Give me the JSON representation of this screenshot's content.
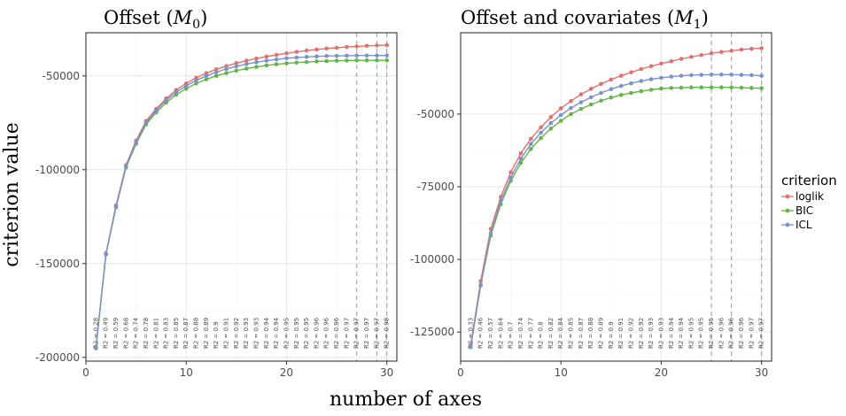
{
  "figure": {
    "xlabel": "number of axes",
    "ylabel": "criterion value"
  },
  "legend": {
    "title": "criterion",
    "items": [
      {
        "label": "loglik",
        "color": "#E0726D"
      },
      {
        "label": "BIC",
        "color": "#63B548"
      },
      {
        "label": "ICL",
        "color": "#7C92CC"
      }
    ]
  },
  "chart_data": [
    {
      "type": "line",
      "title": "Offset (M_0)",
      "title_parts": {
        "prefix": "Offset (",
        "symbol": "M",
        "subscript": "0",
        "suffix": ")"
      },
      "xlabel": "number of axes",
      "ylabel": "criterion value",
      "xlim": [
        0,
        31
      ],
      "ylim": [
        -202000,
        -27000
      ],
      "xticks": [
        0,
        10,
        20,
        30
      ],
      "yticks": [
        -200000,
        -150000,
        -100000,
        -50000
      ],
      "ytick_labels": [
        "-200000",
        "-150000",
        "-100000",
        "-50000"
      ],
      "grid": true,
      "x": [
        1,
        2,
        3,
        4,
        5,
        6,
        7,
        8,
        9,
        10,
        11,
        12,
        13,
        14,
        15,
        16,
        17,
        18,
        19,
        20,
        21,
        22,
        23,
        24,
        25,
        26,
        27,
        28,
        29,
        30
      ],
      "series": [
        {
          "name": "loglik",
          "values": [
            -194500,
            -144500,
            -119000,
            -97500,
            -84500,
            -74000,
            -67500,
            -62000,
            -57500,
            -54000,
            -51000,
            -48500,
            -46500,
            -44800,
            -43200,
            -41900,
            -40700,
            -39700,
            -38800,
            -38000,
            -37200,
            -36500,
            -35900,
            -35400,
            -35000,
            -34600,
            -34300,
            -34000,
            -33800,
            -33600
          ]
        },
        {
          "name": "BIC",
          "values": [
            -194800,
            -145200,
            -120000,
            -98800,
            -86200,
            -75800,
            -69500,
            -64200,
            -60000,
            -56800,
            -54000,
            -51800,
            -50000,
            -48500,
            -47200,
            -46100,
            -45200,
            -44400,
            -43800,
            -43300,
            -42900,
            -42600,
            -42300,
            -42100,
            -41900,
            -41800,
            -41700,
            -41700,
            -41700,
            -41700
          ]
        },
        {
          "name": "ICL",
          "values": [
            -195200,
            -145000,
            -119500,
            -98200,
            -85400,
            -74900,
            -68400,
            -63000,
            -58700,
            -55300,
            -52400,
            -50000,
            -48000,
            -46300,
            -44900,
            -43700,
            -42700,
            -41900,
            -41200,
            -40600,
            -40200,
            -39900,
            -39600,
            -39400,
            -39300,
            -39200,
            -39100,
            -39100,
            -39100,
            -39100
          ]
        }
      ],
      "r2_labels": [
        "R2 = 0.28",
        "R2 = 0.49",
        "R2 = 0.59",
        "R2 = 0.68",
        "R2 = 0.74",
        "R2 = 0.78",
        "R2 = 0.81",
        "R2 = 0.83",
        "R2 = 0.85",
        "R2 = 0.87",
        "R2 = 0.88",
        "R2 = 0.89",
        "R2 = 0.9",
        "R2 = 0.91",
        "R2 = 0.92",
        "R2 = 0.93",
        "R2 = 0.93",
        "R2 = 0.94",
        "R2 = 0.94",
        "R2 = 0.95",
        "R2 = 0.95",
        "R2 = 0.95",
        "R2 = 0.96",
        "R2 = 0.96",
        "R2 = 0.96",
        "R2 = 0.97",
        "R2 = 0.97",
        "R2 = 0.97",
        "R2 = 0.97",
        "R2 = 0.98"
      ],
      "vlines": [
        27,
        29,
        30
      ]
    },
    {
      "type": "line",
      "title": "Offset and covariates (M_1)",
      "title_parts": {
        "prefix": "Offset and covariates (",
        "symbol": "M",
        "subscript": "1",
        "suffix": ")"
      },
      "xlabel": "number of axes",
      "ylabel": "criterion value",
      "xlim": [
        0,
        31
      ],
      "ylim": [
        -135000,
        -22000
      ],
      "xticks": [
        0,
        10,
        20,
        30
      ],
      "yticks": [
        -125000,
        -100000,
        -75000,
        -50000
      ],
      "ytick_labels": [
        "-125000",
        "-100000",
        "-75000",
        "-50000"
      ],
      "grid": true,
      "x": [
        1,
        2,
        3,
        4,
        5,
        6,
        7,
        8,
        9,
        10,
        11,
        12,
        13,
        14,
        15,
        16,
        17,
        18,
        19,
        20,
        21,
        22,
        23,
        24,
        25,
        26,
        27,
        28,
        29,
        30
      ],
      "series": [
        {
          "name": "loglik",
          "values": [
            -129500,
            -107500,
            -89500,
            -78500,
            -70000,
            -63500,
            -58500,
            -54500,
            -51000,
            -48000,
            -45500,
            -43200,
            -41300,
            -39600,
            -38100,
            -36800,
            -35600,
            -34500,
            -33500,
            -32600,
            -31800,
            -31000,
            -30300,
            -29700,
            -29100,
            -28600,
            -28200,
            -27800,
            -27500,
            -27300
          ]
        },
        {
          "name": "BIC",
          "values": [
            -130200,
            -109000,
            -91800,
            -81000,
            -73000,
            -66800,
            -62000,
            -58200,
            -55000,
            -52300,
            -50000,
            -48200,
            -46700,
            -45400,
            -44300,
            -43400,
            -42700,
            -42100,
            -41600,
            -41200,
            -41000,
            -40900,
            -40800,
            -40800,
            -40800,
            -40800,
            -40800,
            -40900,
            -41000,
            -41100
          ]
        },
        {
          "name": "ICL",
          "values": [
            -130000,
            -108800,
            -91000,
            -79800,
            -71800,
            -65300,
            -60300,
            -56400,
            -53100,
            -50300,
            -47900,
            -45900,
            -44200,
            -42700,
            -41400,
            -40300,
            -39400,
            -38600,
            -38000,
            -37500,
            -37100,
            -36800,
            -36600,
            -36500,
            -36400,
            -36400,
            -36400,
            -36500,
            -36600,
            -36800
          ]
        }
      ],
      "r2_labels": [
        "R2 = 0.33",
        "R2 = 0.46",
        "R2 = 0.57",
        "R2 = 0.64",
        "R2 = 0.7",
        "R2 = 0.74",
        "R2 = 0.77",
        "R2 = 0.8",
        "R2 = 0.82",
        "R2 = 0.84",
        "R2 = 0.85",
        "R2 = 0.87",
        "R2 = 0.88",
        "R2 = 0.89",
        "R2 = 0.9",
        "R2 = 0.91",
        "R2 = 0.92",
        "R2 = 0.92",
        "R2 = 0.93",
        "R2 = 0.93",
        "R2 = 0.94",
        "R2 = 0.94",
        "R2 = 0.95",
        "R2 = 0.95",
        "R2 = 0.95",
        "R2 = 0.96",
        "R2 = 0.96",
        "R2 = 0.96",
        "R2 = 0.97",
        "R2 = 0.97"
      ],
      "vlines": [
        25,
        27,
        30
      ]
    }
  ]
}
